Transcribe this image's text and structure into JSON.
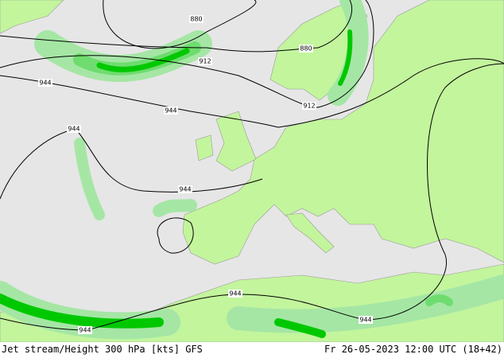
{
  "footer": {
    "title": "Jet stream/Height 300 hPa [kts] GFS",
    "valid_time": "Fr 26-05-2023 12:00 UTC (18+42)"
  },
  "contour_labels": [
    "880",
    "880",
    "912",
    "912",
    "944",
    "944",
    "944",
    "944",
    "944",
    "944",
    "944"
  ]
}
